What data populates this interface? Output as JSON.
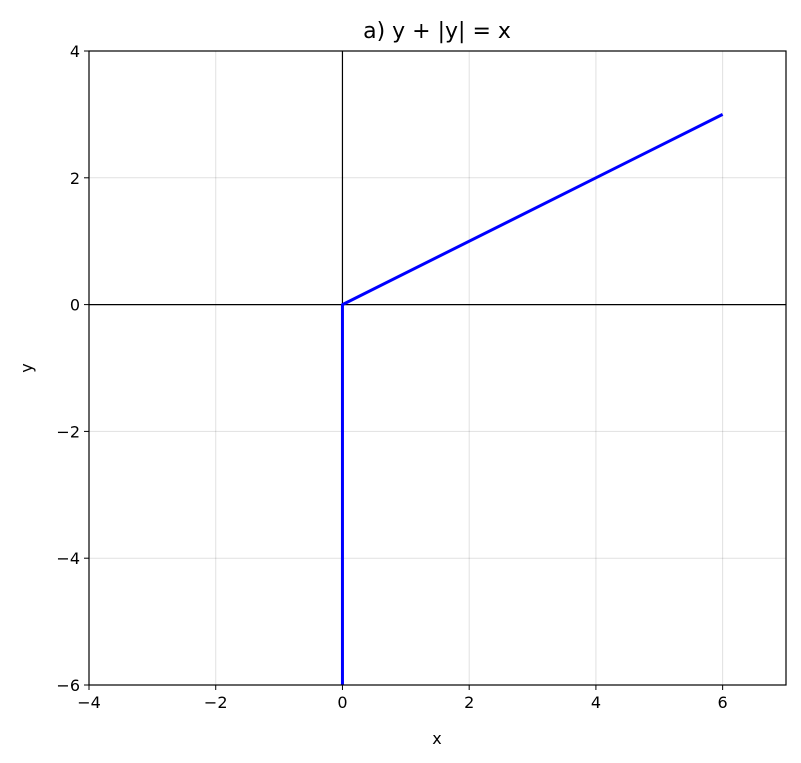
{
  "chart_data": {
    "type": "line",
    "title": "a) y + |y| = x",
    "xlabel": "x",
    "ylabel": "y",
    "xlim": [
      -4,
      7
    ],
    "ylim": [
      -6,
      4
    ],
    "xticks": [
      -4,
      -2,
      0,
      2,
      4,
      6
    ],
    "yticks": [
      -6,
      -4,
      -2,
      0,
      2,
      4
    ],
    "xtick_labels": [
      "−4",
      "−2",
      "0",
      "2",
      "4",
      "6"
    ],
    "ytick_labels": [
      "−6",
      "−4",
      "−2",
      "0",
      "2",
      "4"
    ],
    "grid": true,
    "zero_axes": true,
    "series": [
      {
        "color": "#0000ff",
        "x": [
          0,
          0,
          6
        ],
        "y": [
          -6,
          0,
          3
        ]
      }
    ]
  }
}
